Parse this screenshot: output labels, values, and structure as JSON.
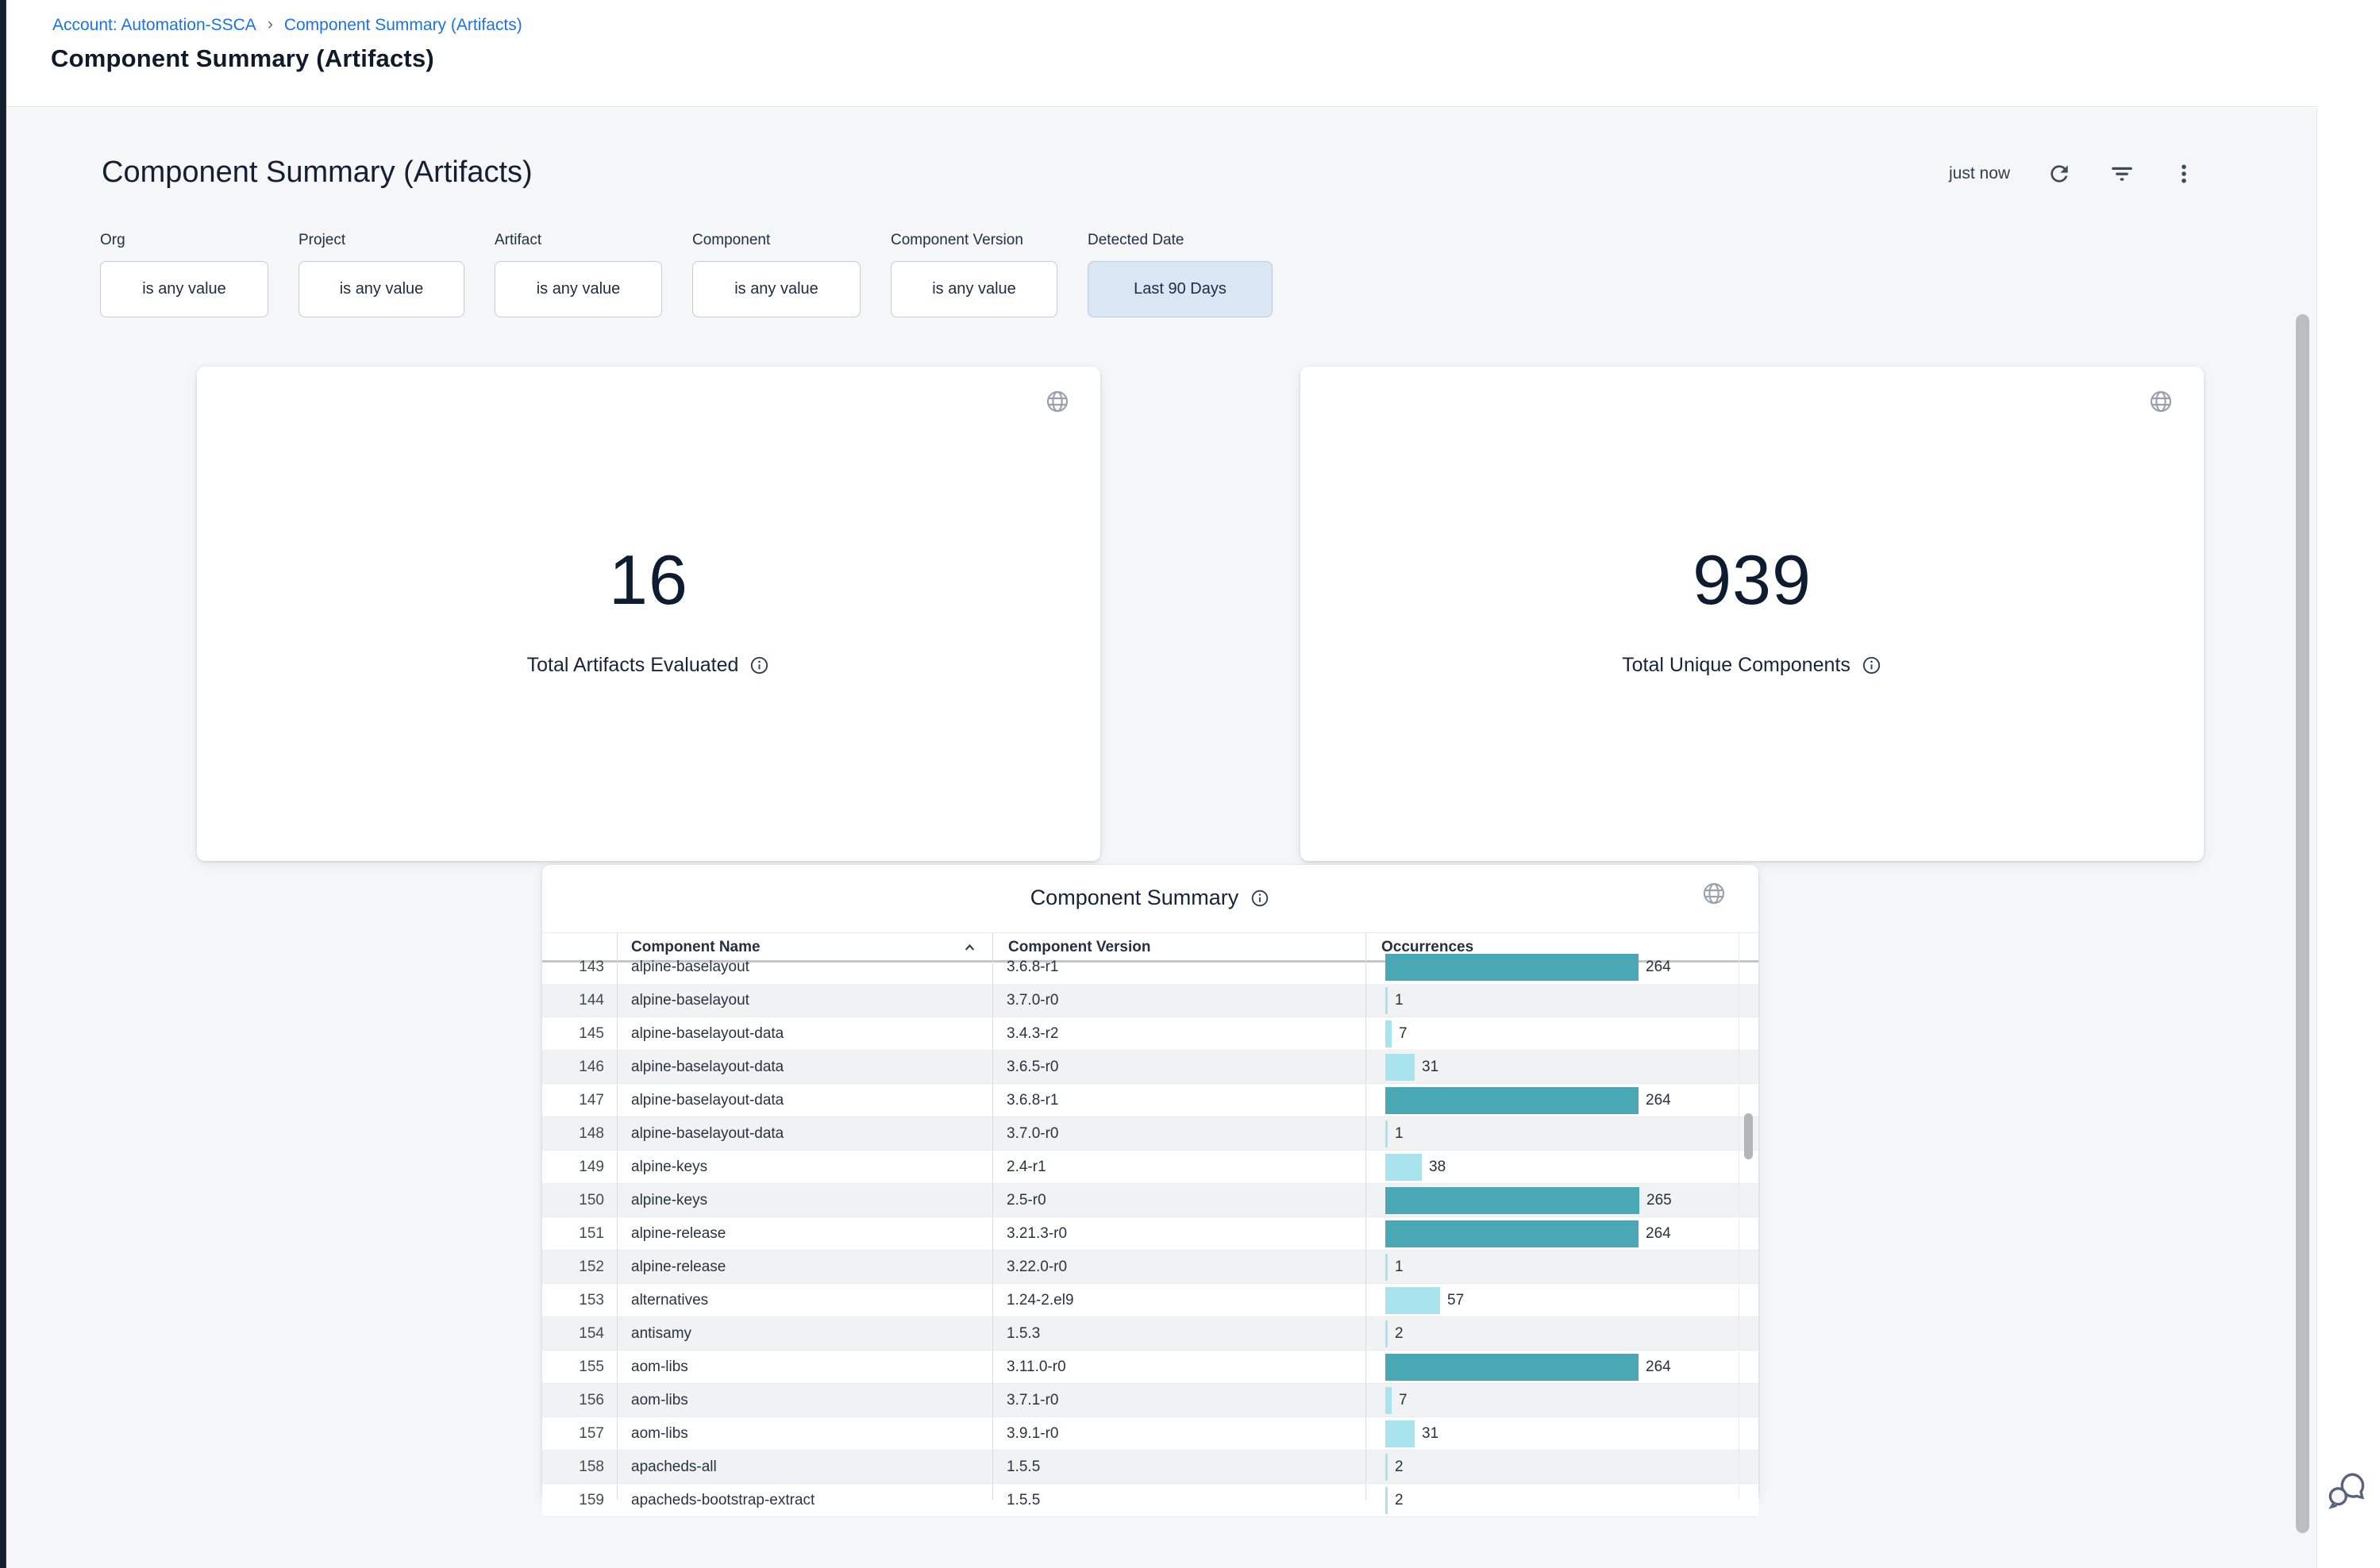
{
  "page": {
    "breadcrumb": {
      "account": "Account: Automation-SSCA",
      "separator": "›",
      "current": "Component Summary (Artifacts)"
    },
    "title": "Component Summary (Artifacts)"
  },
  "dashboard": {
    "title": "Component Summary (Artifacts)",
    "refreshed": "just now",
    "filters": [
      {
        "label": "Org",
        "value": "is any value",
        "active": false
      },
      {
        "label": "Project",
        "value": "is any value",
        "active": false
      },
      {
        "label": "Artifact",
        "value": "is any value",
        "active": false
      },
      {
        "label": "Component",
        "value": "is any value",
        "active": false
      },
      {
        "label": "Component Version",
        "value": "is any value",
        "active": false
      },
      {
        "label": "Detected Date",
        "value": "Last 90 Days",
        "active": true
      }
    ],
    "tiles": [
      {
        "value": "16",
        "label": "Total Artifacts Evaluated"
      },
      {
        "value": "939",
        "label": "Total Unique Components"
      }
    ],
    "table": {
      "title": "Component Summary",
      "columns": [
        "Component Name",
        "Component Version",
        "Occurrences"
      ],
      "sort": {
        "column": "Component Name",
        "direction": "asc"
      },
      "max_value": 265,
      "partial_row": {
        "index": 143,
        "name": "alpine-baselayout",
        "version": "3.6.8-r1",
        "value": 264
      },
      "rows": [
        {
          "index": 144,
          "name": "alpine-baselayout",
          "version": "3.7.0-r0",
          "value": 1
        },
        {
          "index": 145,
          "name": "alpine-baselayout-data",
          "version": "3.4.3-r2",
          "value": 7
        },
        {
          "index": 146,
          "name": "alpine-baselayout-data",
          "version": "3.6.5-r0",
          "value": 31
        },
        {
          "index": 147,
          "name": "alpine-baselayout-data",
          "version": "3.6.8-r1",
          "value": 264
        },
        {
          "index": 148,
          "name": "alpine-baselayout-data",
          "version": "3.7.0-r0",
          "value": 1
        },
        {
          "index": 149,
          "name": "alpine-keys",
          "version": "2.4-r1",
          "value": 38
        },
        {
          "index": 150,
          "name": "alpine-keys",
          "version": "2.5-r0",
          "value": 265
        },
        {
          "index": 151,
          "name": "alpine-release",
          "version": "3.21.3-r0",
          "value": 264
        },
        {
          "index": 152,
          "name": "alpine-release",
          "version": "3.22.0-r0",
          "value": 1
        },
        {
          "index": 153,
          "name": "alternatives",
          "version": "1.24-2.el9",
          "value": 57
        },
        {
          "index": 154,
          "name": "antisamy",
          "version": "1.5.3",
          "value": 2
        },
        {
          "index": 155,
          "name": "aom-libs",
          "version": "3.11.0-r0",
          "value": 264
        },
        {
          "index": 156,
          "name": "aom-libs",
          "version": "3.7.1-r0",
          "value": 7
        },
        {
          "index": 157,
          "name": "aom-libs",
          "version": "3.9.1-r0",
          "value": 31
        },
        {
          "index": 158,
          "name": "apacheds-all",
          "version": "1.5.5",
          "value": 2
        },
        {
          "index": 159,
          "name": "apacheds-bootstrap-extract",
          "version": "1.5.5",
          "value": 2
        }
      ]
    }
  },
  "colors": {
    "bar_high": "#49a8b3",
    "bar_low": "#a9e3ee",
    "link_blue": "#1a73e8",
    "active_filter_bg": "#d9e6f4",
    "left_strip": "#131e2e"
  }
}
